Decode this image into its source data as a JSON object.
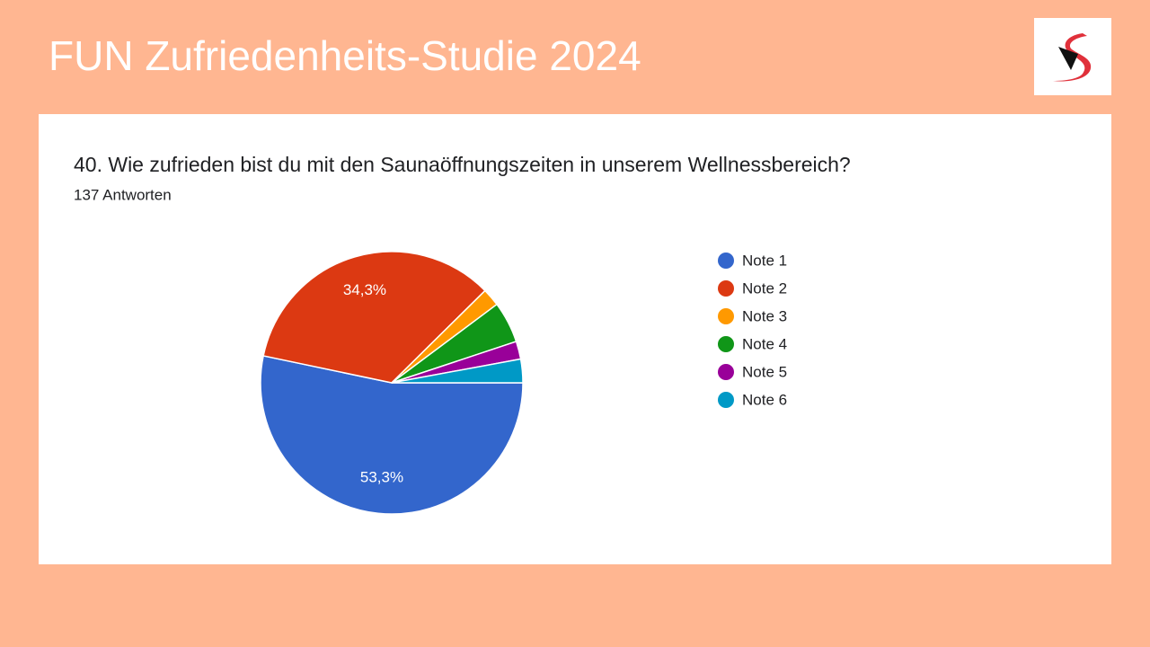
{
  "header": {
    "title": "FUN Zufriedenheits-Studie 2024"
  },
  "chart_data": {
    "type": "pie",
    "title": "40. Wie zufrieden bist du mit den Saunaöffnungszeiten in unserem Wellnessbereich?",
    "subtitle": "137 Antworten",
    "categories": [
      "Note 1",
      "Note 2",
      "Note 3",
      "Note 4",
      "Note 5",
      "Note 6"
    ],
    "values": [
      53.3,
      34.3,
      2.2,
      5.1,
      2.2,
      2.9
    ],
    "value_labels": [
      "53,3%",
      "34,3%",
      null,
      null,
      null,
      null
    ],
    "colors": [
      "#3366cc",
      "#dc3912",
      "#ff9900",
      "#109618",
      "#990099",
      "#0099c6"
    ],
    "legend": "right"
  }
}
